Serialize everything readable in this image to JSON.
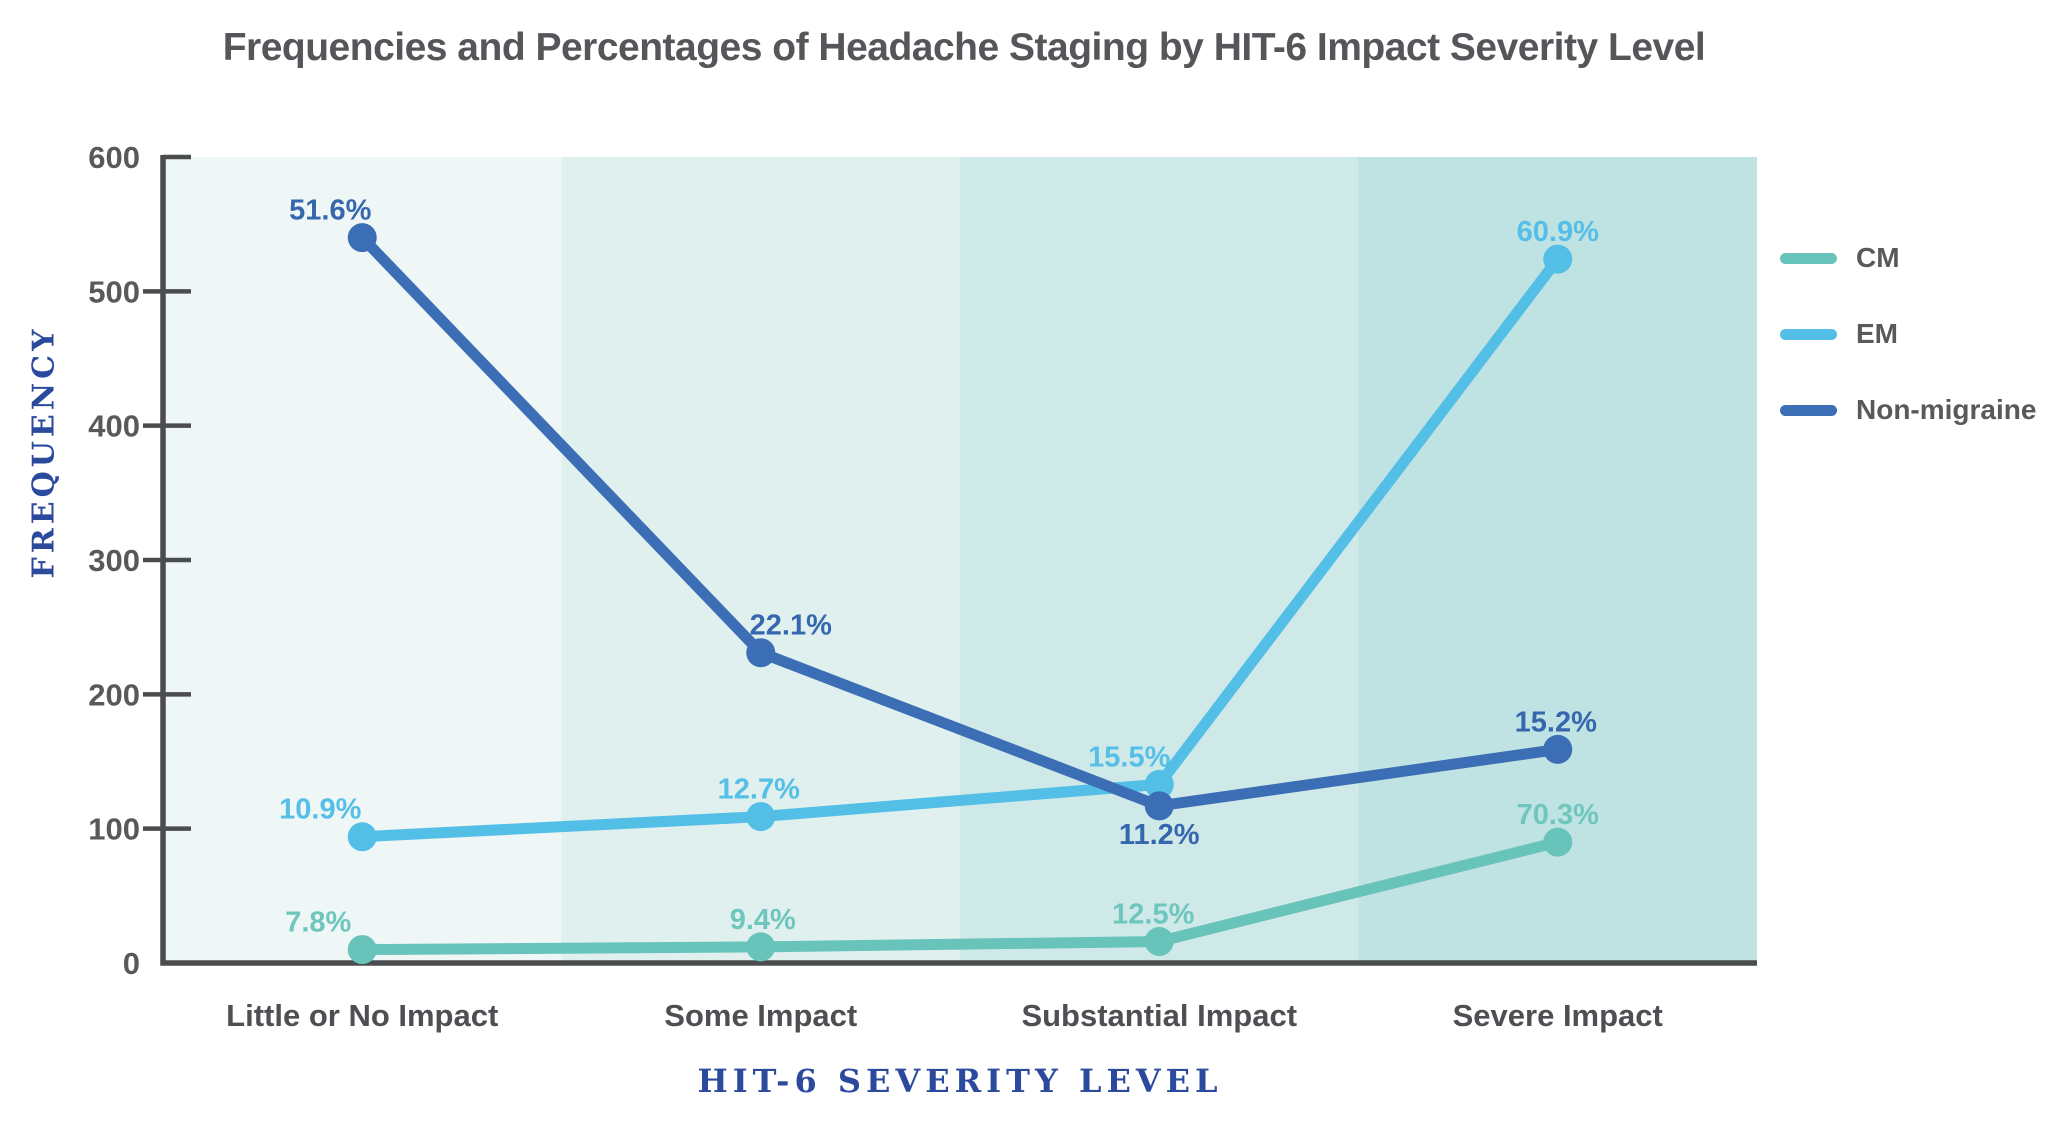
{
  "chart_data": {
    "type": "line",
    "title": "Frequencies and Percentages of Headache Staging by HIT-6 Impact Severity Level",
    "xlabel": "HIT-6 SEVERITY LEVEL",
    "ylabel": "FREQUENCY",
    "categories": [
      "Little or No Impact",
      "Some Impact",
      "Substantial Impact",
      "Severe Impact"
    ],
    "ylim": [
      0,
      600
    ],
    "yticks": [
      0,
      100,
      200,
      300,
      400,
      500,
      600
    ],
    "grid": false,
    "legend_position": "right-outside",
    "series": [
      {
        "name": "CM",
        "color": "#68C3BB",
        "label_color": "#6EC6BD",
        "values": [
          10,
          12,
          16,
          90
        ],
        "labels": [
          "7.8%",
          "9.4%",
          "12.5%",
          "70.3%"
        ],
        "label_offsets": [
          [
            -44,
            -18
          ],
          [
            2,
            -18
          ],
          [
            -6,
            -18
          ],
          [
            0,
            -18
          ]
        ]
      },
      {
        "name": "EM",
        "color": "#53BEE6",
        "label_color": "#56BFE8",
        "values": [
          94,
          109,
          133,
          524
        ],
        "labels": [
          "10.9%",
          "12.7%",
          "15.5%",
          "60.9%"
        ],
        "label_offsets": [
          [
            -42,
            -18
          ],
          [
            -2,
            -18
          ],
          [
            -30,
            -18
          ],
          [
            0,
            -18
          ]
        ]
      },
      {
        "name": "Non-migraine",
        "color": "#3C6EB5",
        "label_color": "#3667AE",
        "values": [
          540,
          231,
          117,
          159
        ],
        "labels": [
          "51.6%",
          "22.1%",
          "11.2%",
          "15.2%"
        ],
        "label_offsets": [
          [
            -32,
            -18
          ],
          [
            30,
            -18
          ],
          [
            0,
            38
          ],
          [
            -2,
            -18
          ]
        ]
      }
    ],
    "band_colors": [
      "#EEF6F6",
      "#DFF0EF",
      "#CFE9E9",
      "#BFE2E2"
    ],
    "axis_color": "#4A4C4E",
    "tick_label_color": "#58595B",
    "category_label_color": "#4D4F53",
    "axis_title_color": "#2B4A9E",
    "title_color": "#54565A",
    "legend_text_color": "#58595B"
  }
}
